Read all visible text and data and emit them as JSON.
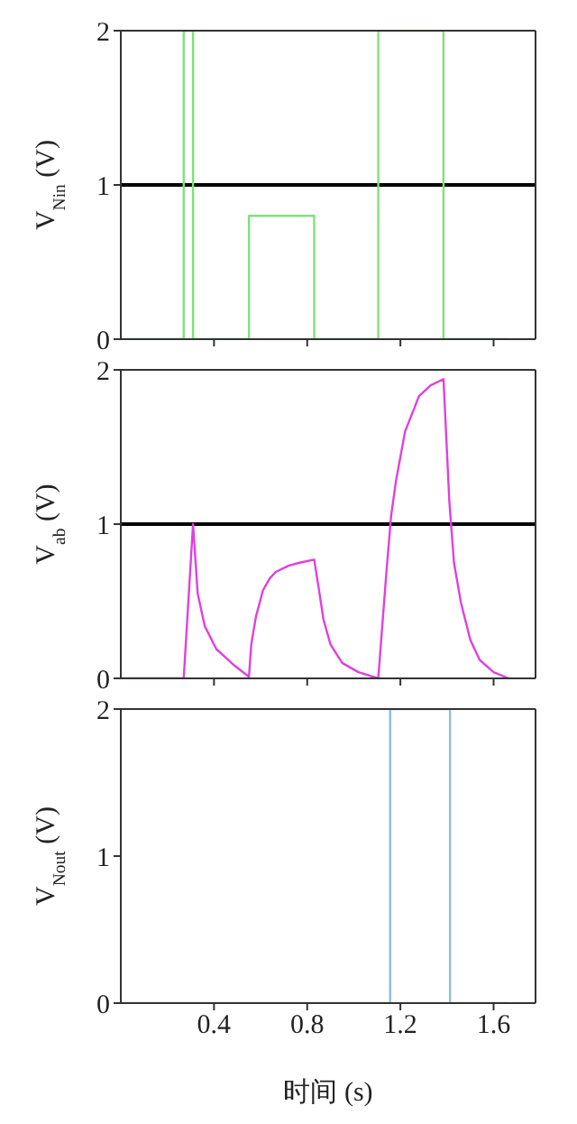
{
  "chart_data": [
    {
      "type": "line",
      "ylabel": "V$_{Nin}$ (V)",
      "x": [
        0,
        0.27,
        0.27,
        0.31,
        0.31,
        0.55,
        0.55,
        0.83,
        0.83,
        1.105,
        1.105,
        1.385,
        1.385,
        1.665
      ],
      "series": [
        {
          "color": "#7ee07e",
          "values": [
            0,
            0,
            2,
            2,
            0,
            0,
            0.8,
            0.8,
            0,
            0,
            2,
            2,
            0,
            0
          ]
        }
      ],
      "xlim": [
        0,
        1.78
      ],
      "xticks": [
        {
          "value": 0.4,
          "label": null
        },
        {
          "value": 0.8,
          "label": null
        },
        {
          "value": 1.2,
          "label": null
        },
        {
          "value": 1.6,
          "label": null
        }
      ],
      "ylim": [
        0,
        2
      ],
      "yticks": [
        0,
        1,
        2
      ],
      "ref_lines": [
        {
          "axis": "y",
          "value": 1,
          "color": "#000000"
        }
      ],
      "tick_labels": "y",
      "marker": "none",
      "line_style": "solid",
      "grid": false,
      "legend": false
    },
    {
      "type": "line",
      "ylabel": "V$_{ab}$ (V)",
      "x": [
        0,
        0.27,
        0.31,
        0.33,
        0.36,
        0.41,
        0.49,
        0.55,
        0.56,
        0.58,
        0.61,
        0.64,
        0.665,
        0.72,
        0.767,
        0.83,
        0.85,
        0.87,
        0.9,
        0.95,
        1.02,
        1.105,
        1.14,
        1.16,
        1.18,
        1.22,
        1.28,
        1.33,
        1.385,
        1.41,
        1.43,
        1.46,
        1.5,
        1.54,
        1.6,
        1.665
      ],
      "series": [
        {
          "color": "#e040e0",
          "values": [
            0,
            0,
            1.0,
            0.55,
            0.34,
            0.19,
            0.08,
            0.01,
            0.22,
            0.4,
            0.57,
            0.65,
            0.69,
            0.73,
            0.75,
            0.77,
            0.58,
            0.38,
            0.22,
            0.1,
            0.04,
            0,
            0.69,
            1.05,
            1.27,
            1.6,
            1.83,
            1.9,
            1.94,
            1.15,
            0.75,
            0.49,
            0.25,
            0.12,
            0.04,
            0
          ]
        }
      ],
      "xlim": [
        0,
        1.78
      ],
      "xticks": [
        {
          "value": 0.4,
          "label": null
        },
        {
          "value": 0.8,
          "label": null
        },
        {
          "value": 1.2,
          "label": null
        },
        {
          "value": 1.6,
          "label": null
        }
      ],
      "ylim": [
        0,
        2
      ],
      "yticks": [
        0,
        1,
        2
      ],
      "ref_lines": [
        {
          "axis": "y",
          "value": 1,
          "color": "#000000"
        }
      ],
      "tick_labels": "y",
      "marker": "none",
      "line_style": "solid",
      "grid": false,
      "legend": false
    },
    {
      "type": "line",
      "ylabel": "V$_{Nout}$ (V)",
      "xlabel": "时间 (s)",
      "x": [
        0,
        1.156,
        1.156,
        1.413,
        1.413,
        1.665
      ],
      "series": [
        {
          "color": "#8cbce8",
          "values": [
            0,
            0,
            2,
            2,
            0,
            0
          ]
        }
      ],
      "xlim": [
        0,
        1.78
      ],
      "xticks": [
        0.4,
        0.8,
        1.2,
        1.6
      ],
      "ylim": [
        0,
        2
      ],
      "yticks": [
        0,
        1,
        2
      ],
      "marker": "none",
      "line_style": "solid",
      "grid": false,
      "legend": false
    }
  ]
}
